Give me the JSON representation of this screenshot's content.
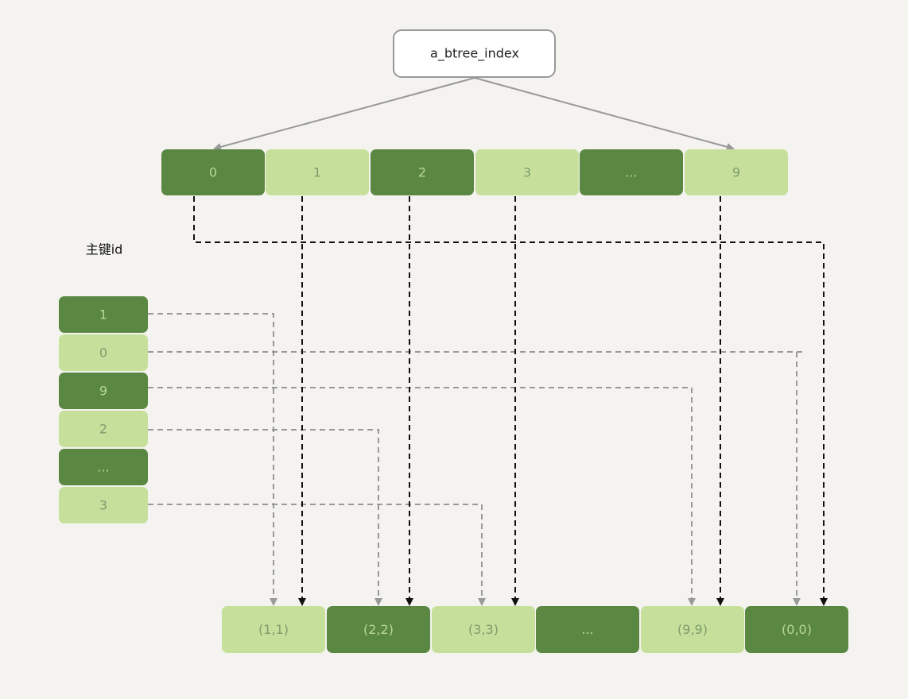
{
  "root": {
    "label": "a_btree_index"
  },
  "index_nodes": [
    "0",
    "1",
    "2",
    "3",
    "...",
    "9"
  ],
  "primary_key": {
    "label": "主键id",
    "nodes": [
      "1",
      "0",
      "9",
      "2",
      "...",
      "3"
    ]
  },
  "data_nodes": [
    "(1,1)",
    "(2,2)",
    "(3,3)",
    "...",
    "(9,9)",
    "(0,0)"
  ]
}
